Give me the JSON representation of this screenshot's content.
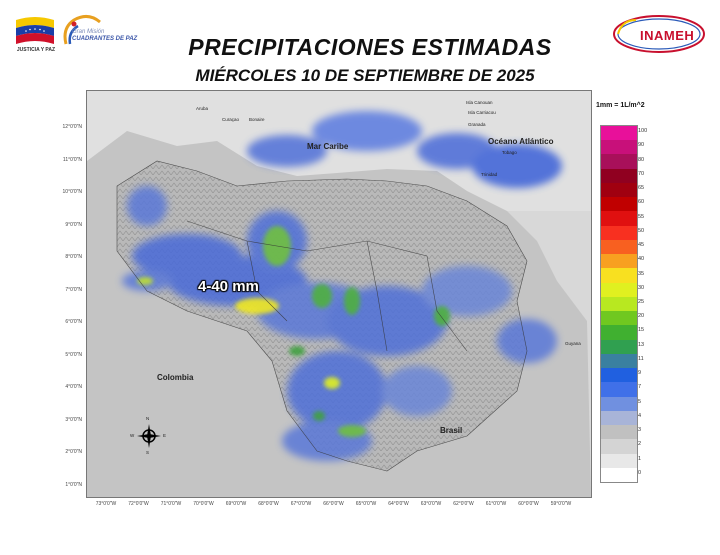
{
  "header": {
    "title": "PRECIPITACIONES ESTIMADAS",
    "subtitle": "MIÉRCOLES 10 DE SEPTIEMBRE DE 2025"
  },
  "logos": {
    "left_caption": "JUSTICIA Y PAZ",
    "mision_line1": "Gran Misión",
    "mision_line2": "CUADRANTES DE PAZ",
    "inameh": "INAMEH"
  },
  "map": {
    "overlay_label": "4-40 mm",
    "labels": {
      "caribe": "Mar Caribe",
      "atlantico": "Océano Atlántico",
      "colombia": "Colombia",
      "brasil": "Brasil",
      "guyana": "Guyana",
      "trinidad": "Trinidad",
      "aruba": "Aruba",
      "curacao": "Curaçao",
      "bonaire": "Bonaire",
      "tobago": "Tobago",
      "grenada": "Granada",
      "canouan": "Isla Canouan",
      "carriacou": "Isla Carriacou"
    },
    "lat_ticks": [
      "12°0'0\"N",
      "11°0'0\"N",
      "10°0'0\"N",
      "9°0'0\"N",
      "8°0'0\"N",
      "7°0'0\"N",
      "6°0'0\"N",
      "5°0'0\"N",
      "4°0'0\"N",
      "3°0'0\"N",
      "2°0'0\"N",
      "1°0'0\"N"
    ],
    "lon_ticks": [
      "73°0'0\"W",
      "72°0'0\"W",
      "71°0'0\"W",
      "70°0'0\"W",
      "69°0'0\"W",
      "68°0'0\"W",
      "67°0'0\"W",
      "66°0'0\"W",
      "65°0'0\"W",
      "64°0'0\"W",
      "63°0'0\"W",
      "62°0'0\"W",
      "61°0'0\"W",
      "60°0'0\"W",
      "59°0'0\"W"
    ],
    "compass": {
      "n": "N",
      "s": "S",
      "e": "E",
      "w": "W"
    }
  },
  "legend": {
    "unit": "1mm = 1L/m^2",
    "bins": [
      {
        "label": "100",
        "color": "#e8109a"
      },
      {
        "label": "90",
        "color": "#c8107a"
      },
      {
        "label": "80",
        "color": "#a8105a"
      },
      {
        "label": "70",
        "color": "#900020"
      },
      {
        "label": "65",
        "color": "#a00010"
      },
      {
        "label": "60",
        "color": "#c00000"
      },
      {
        "label": "55",
        "color": "#e01010"
      },
      {
        "label": "50",
        "color": "#f83020"
      },
      {
        "label": "45",
        "color": "#f86020"
      },
      {
        "label": "40",
        "color": "#f8a020"
      },
      {
        "label": "35",
        "color": "#f8e020"
      },
      {
        "label": "30",
        "color": "#e0f020"
      },
      {
        "label": "25",
        "color": "#b8e820"
      },
      {
        "label": "20",
        "color": "#70c820"
      },
      {
        "label": "15",
        "color": "#40b030"
      },
      {
        "label": "13",
        "color": "#30a050"
      },
      {
        "label": "11",
        "color": "#3a80a0"
      },
      {
        "label": "9",
        "color": "#2060e0"
      },
      {
        "label": "7",
        "color": "#4070e8"
      },
      {
        "label": "5",
        "color": "#7090e0"
      },
      {
        "label": "4",
        "color": "#a8b4d8"
      },
      {
        "label": "3",
        "color": "#c0c0c0"
      },
      {
        "label": "2",
        "color": "#d4d4d4"
      },
      {
        "label": "1",
        "color": "#e8e8e8"
      },
      {
        "label": "0",
        "color": "#ffffff"
      }
    ]
  }
}
